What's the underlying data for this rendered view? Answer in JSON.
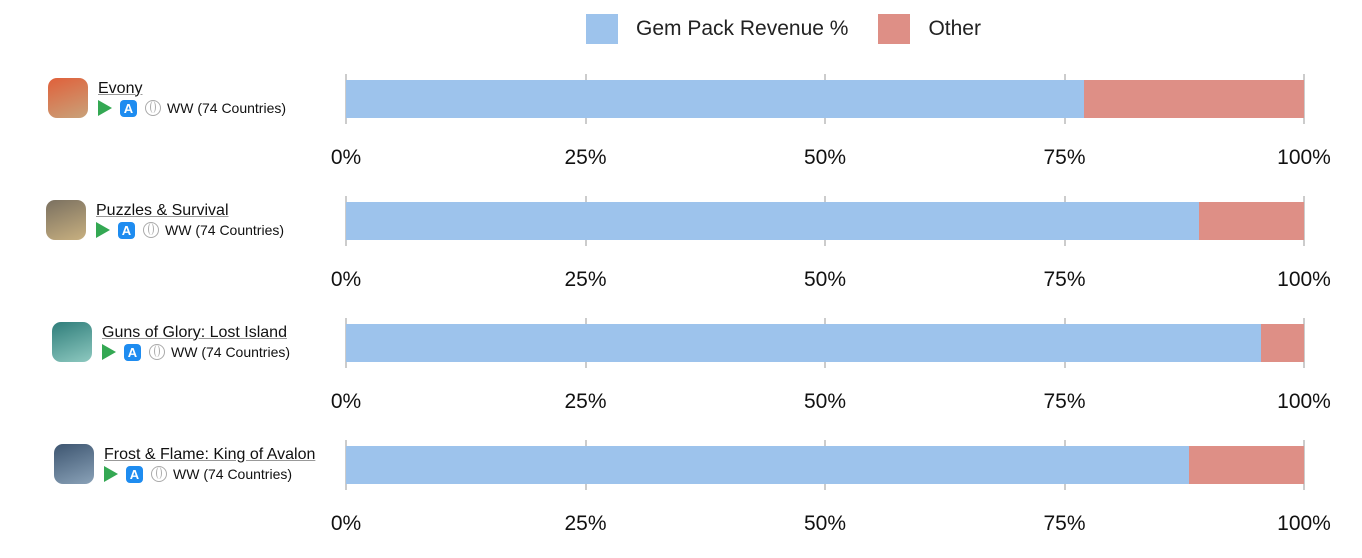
{
  "legend": [
    {
      "label": "Gem Pack Revenue %",
      "color": "#9dc3ec"
    },
    {
      "label": "Other",
      "color": "#de8f86"
    }
  ],
  "chart_data": {
    "type": "bar",
    "stacked": true,
    "orientation": "horizontal",
    "categories": [
      "Evony",
      "Puzzles & Survival",
      "Guns of Glory: Lost Island",
      "Frost & Flame: King of Avalon"
    ],
    "series": [
      {
        "name": "Gem Pack Revenue %",
        "values": [
          77,
          89,
          95.5,
          88
        ]
      },
      {
        "name": "Other",
        "values": [
          23,
          11,
          4.5,
          12
        ]
      }
    ],
    "xlim": [
      0,
      100
    ],
    "tick_labels": [
      "0%",
      "25%",
      "50%",
      "75%",
      "100%"
    ],
    "legend_position": "top"
  },
  "apps": [
    {
      "name": "Evony",
      "region": "WW (74 Countries)",
      "icon_colors": [
        "#e0603a",
        "#c9a27a"
      ]
    },
    {
      "name": "Puzzles & Survival",
      "region": "WW (74 Countries)",
      "icon_colors": [
        "#7a7060",
        "#c8b080"
      ]
    },
    {
      "name": "Guns of Glory: Lost Island",
      "region": "WW (74 Countries)",
      "icon_colors": [
        "#2f7d7a",
        "#8ec9c0"
      ]
    },
    {
      "name": "Frost & Flame: King of Avalon",
      "region": "WW (74 Countries)",
      "icon_colors": [
        "#3d5570",
        "#8aa2b8"
      ]
    }
  ]
}
